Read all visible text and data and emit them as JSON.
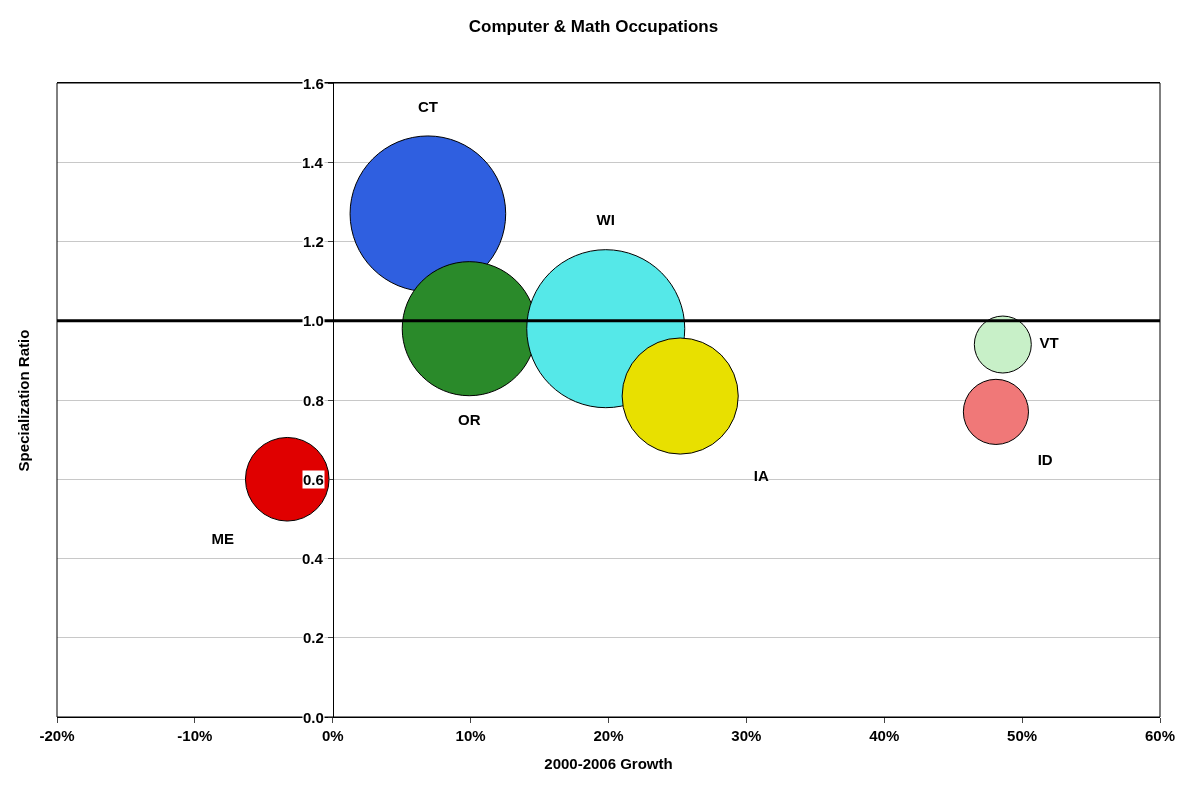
{
  "chart_data": {
    "type": "bubble",
    "title": "Computer & Math Occupations",
    "xlabel": "2000-2006 Growth",
    "ylabel": "Specialization Ratio",
    "series": [
      {
        "name": "CT",
        "color": "#2f5fe0",
        "x": [
          6.9
        ],
        "values": [
          1.27
        ],
        "sizes": [
          0.97
        ]
      },
      {
        "name": "OR",
        "color": "#2a8a2a",
        "x": [
          9.9
        ],
        "values": [
          0.98
        ],
        "sizes": [
          0.72
        ]
      },
      {
        "name": "WI",
        "color": "#55e8e8",
        "x": [
          19.8
        ],
        "values": [
          0.98
        ],
        "sizes": [
          1
        ]
      },
      {
        "name": "IA",
        "color": "#e8e000",
        "x": [
          25.2
        ],
        "values": [
          0.81
        ],
        "sizes": [
          0.54
        ]
      },
      {
        "name": "ME",
        "color": "#e00000",
        "x": [
          -3.3
        ],
        "values": [
          0.6
        ],
        "sizes": [
          0.28
        ]
      },
      {
        "name": "VT",
        "color": "#c8f0c8",
        "x": [
          48.6
        ],
        "values": [
          0.94
        ],
        "sizes": [
          0.13
        ]
      },
      {
        "name": "ID",
        "color": "#f07878",
        "x": [
          48.1
        ],
        "values": [
          0.77
        ],
        "sizes": [
          0.17
        ]
      }
    ],
    "xlim": [
      -20,
      60
    ],
    "xticks": [
      {
        "value": -20,
        "label": "-20%"
      },
      {
        "value": -10,
        "label": "-10%"
      },
      {
        "value": 0,
        "label": "0%"
      },
      {
        "value": 10,
        "label": "10%"
      },
      {
        "value": 20,
        "label": "20%"
      },
      {
        "value": 30,
        "label": "30%"
      },
      {
        "value": 40,
        "label": "40%"
      },
      {
        "value": 50,
        "label": "50%"
      },
      {
        "value": 60,
        "label": "60%"
      }
    ],
    "ylim": [
      0,
      1.6
    ],
    "yticks": [
      {
        "value": 0,
        "label": "0.0"
      },
      {
        "value": 0.2,
        "label": "0.2"
      },
      {
        "value": 0.4,
        "label": "0.4"
      },
      {
        "value": 0.6,
        "label": "0.6"
      },
      {
        "value": 0.8,
        "label": "0.8"
      },
      {
        "value": 1.0,
        "label": "1.0"
      },
      {
        "value": 1.2,
        "label": "1.2"
      },
      {
        "value": 1.4,
        "label": "1.4"
      },
      {
        "value": 1.6,
        "label": "1.6"
      }
    ],
    "ref_lines": [
      {
        "axis": "y",
        "value": 1.0,
        "color": "#000000"
      }
    ],
    "grid": "y",
    "legend": false
  }
}
